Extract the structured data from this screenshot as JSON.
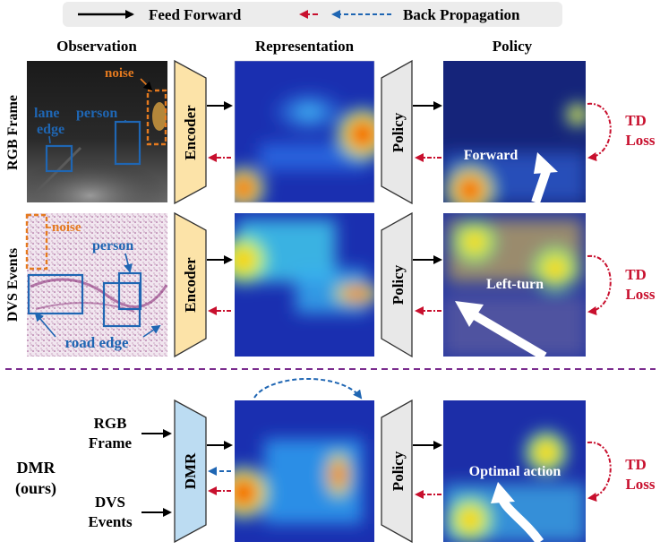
{
  "legend": {
    "feed_forward": "Feed Forward",
    "back_propagation": "Back Propagation"
  },
  "columns": {
    "observation": "Observation",
    "representation": "Representation",
    "policy": "Policy"
  },
  "rows": {
    "rgb": "RGB Frame",
    "dvs": "DVS Events",
    "dmr_line1": "DMR",
    "dmr_line2": "(ours)"
  },
  "annotations": {
    "noise": "noise",
    "lane_edge_1": "lane",
    "lane_edge_2": "edge",
    "person": "person",
    "road_edge": "road edge"
  },
  "modules": {
    "encoder": "Encoder",
    "policy": "Policy",
    "dmr": "DMR"
  },
  "actions": {
    "forward": "Forward",
    "left_turn": "Left-turn",
    "optimal": "Optimal action"
  },
  "losses": {
    "td_line1": "TD",
    "td_line2": "Loss"
  },
  "inputs": {
    "rgb_line1": "RGB",
    "rgb_line2": "Frame",
    "dvs_line1": "DVS",
    "dvs_line2": "Events"
  },
  "colors": {
    "orange": "#e57a1f",
    "blue": "#1f66b3",
    "red": "#c8102e",
    "encoder_fill": "#fce3a8",
    "policy_fill": "#e8e8e8",
    "dmr_fill": "#bcdcf2",
    "divider": "#7b2d8e"
  }
}
